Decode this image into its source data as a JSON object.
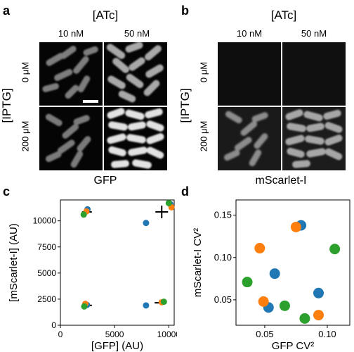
{
  "panels": {
    "a": {
      "letter": "a",
      "top_header": "[ATc]",
      "col1": "10 nM",
      "col2": "50 nM",
      "side_header": "[IPTG]",
      "row1": "0 μM",
      "row2": "200 μM",
      "channel": "GFP"
    },
    "b": {
      "letter": "b",
      "top_header": "[ATc]",
      "col1": "10 nM",
      "col2": "50 nM",
      "side_header": "[IPTG]",
      "row1": "0 μM",
      "row2": "200 μM",
      "channel": "mScarlet-I"
    },
    "c": {
      "letter": "c"
    },
    "d": {
      "letter": "d"
    }
  },
  "colors": {
    "blue": "#1f77b4",
    "orange": "#ff7f0e",
    "green": "#2ca02c"
  },
  "chart_data": [
    {
      "type": "scatter",
      "xlabel": "[GFP] (AU)",
      "ylabel": "[mScarlet-I] (AU)",
      "xlim": [
        0,
        10500
      ],
      "ylim": [
        0,
        12000
      ],
      "xticks": [
        "0",
        "5000",
        "10000"
      ],
      "yticks": [
        "0",
        "2500",
        "5000",
        "7500",
        "10000"
      ],
      "series": [
        {
          "color": "blue",
          "points": [
            [
              2500,
              11100
            ],
            [
              7900,
              9800
            ],
            [
              2450,
              1950
            ],
            [
              7900,
              1900
            ],
            [
              10150,
              11600
            ]
          ]
        },
        {
          "color": "orange",
          "points": [
            [
              2400,
              10900
            ],
            [
              10250,
              11300
            ],
            [
              2300,
              2050
            ],
            [
              9350,
              2200
            ]
          ]
        },
        {
          "color": "green",
          "points": [
            [
              2150,
              10600
            ],
            [
              10000,
              11700
            ],
            [
              2200,
              1800
            ],
            [
              9550,
              2250
            ]
          ]
        }
      ],
      "error_markers": [
        {
          "x": 9350,
          "y": 10850,
          "type": "cross"
        },
        {
          "x": 2450,
          "y": 10850,
          "type": "hbar"
        },
        {
          "x": 2450,
          "y": 1900,
          "type": "hbar"
        },
        {
          "x": 9150,
          "y": 2150,
          "type": "hbar"
        }
      ]
    },
    {
      "type": "scatter",
      "xlabel": "GFP CV²",
      "ylabel": "mScarlet-I CV²",
      "xlim": [
        0.027,
        0.118
      ],
      "ylim": [
        0.02,
        0.168
      ],
      "xticks": [
        "0.05",
        "0.10"
      ],
      "yticks": [
        "0.05",
        "0.10",
        "0.15"
      ],
      "series": [
        {
          "color": "blue",
          "points": [
            [
              0.079,
              0.138
            ],
            [
              0.058,
              0.081
            ],
            [
              0.053,
              0.041
            ],
            [
              0.093,
              0.058
            ]
          ]
        },
        {
          "color": "orange",
          "points": [
            [
              0.075,
              0.136
            ],
            [
              0.046,
              0.111
            ],
            [
              0.049,
              0.048
            ],
            [
              0.093,
              0.032
            ]
          ]
        },
        {
          "color": "green",
          "points": [
            [
              0.106,
              0.11
            ],
            [
              0.036,
              0.071
            ],
            [
              0.066,
              0.043
            ],
            [
              0.082,
              0.028
            ]
          ]
        }
      ]
    }
  ]
}
